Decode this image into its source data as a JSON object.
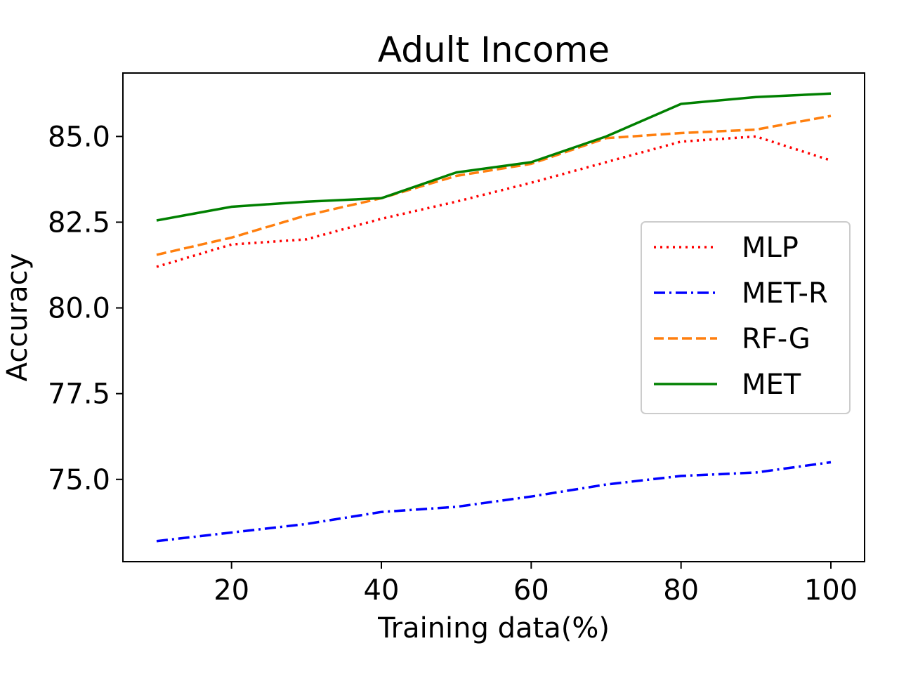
{
  "chart_data": {
    "type": "line",
    "title": "Adult Income",
    "xlabel": "Training data(%)",
    "ylabel": "Accuracy",
    "xlim": [
      5.5,
      104.5
    ],
    "ylim": [
      72.6,
      86.85
    ],
    "x_ticks": [
      20,
      40,
      60,
      80,
      100
    ],
    "x_tick_labels": [
      "20",
      "40",
      "60",
      "80",
      "100"
    ],
    "y_ticks": [
      75.0,
      77.5,
      80.0,
      82.5,
      85.0
    ],
    "y_tick_labels": [
      "75.0",
      "77.5",
      "80.0",
      "82.5",
      "85.0"
    ],
    "grid": false,
    "legend_position": "center-right",
    "x": [
      10,
      20,
      30,
      40,
      50,
      60,
      70,
      80,
      90,
      100
    ],
    "series": [
      {
        "name": "MLP",
        "color": "#ff0000",
        "style": "dotted",
        "values": [
          81.2,
          81.85,
          82.0,
          82.6,
          83.1,
          83.65,
          84.25,
          84.85,
          85.0,
          84.3
        ]
      },
      {
        "name": "MET-R",
        "color": "#0000ff",
        "style": "dashdot",
        "values": [
          73.2,
          73.45,
          73.7,
          74.05,
          74.2,
          74.5,
          74.85,
          75.1,
          75.2,
          75.5
        ]
      },
      {
        "name": "RF-G",
        "color": "#ff7f0e",
        "style": "dashed",
        "values": [
          81.55,
          82.05,
          82.7,
          83.2,
          83.85,
          84.2,
          84.95,
          85.1,
          85.2,
          85.6
        ]
      },
      {
        "name": "MET",
        "color": "#008000",
        "style": "solid",
        "values": [
          82.55,
          82.95,
          83.1,
          83.2,
          83.95,
          84.25,
          85.0,
          85.95,
          86.15,
          86.25
        ]
      }
    ]
  }
}
